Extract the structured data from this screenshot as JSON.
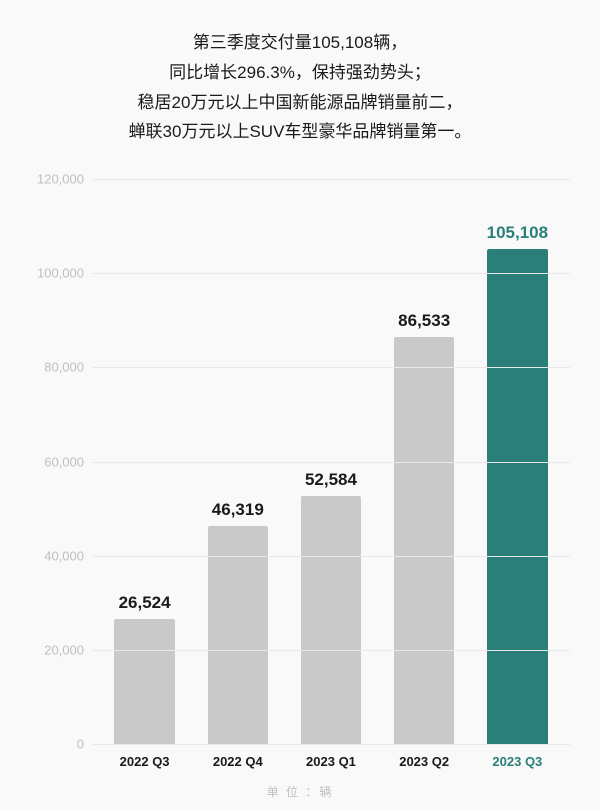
{
  "headline": {
    "lines": [
      "第三季度交付量105,108辆，",
      "同比增长296.3%，保持强劲势头；",
      "稳居20万元以上中国新能源品牌销量前二，",
      "蝉联30万元以上SUV车型豪华品牌销量第一。"
    ],
    "fontsize": 17,
    "color": "#1a1a1a"
  },
  "chart": {
    "type": "bar",
    "background_color": "#f9f9f9",
    "grid_color": "#e9e9e9",
    "ylim": [
      0,
      120000
    ],
    "ytick_step": 20000,
    "yticks": [
      {
        "v": 0,
        "label": "0"
      },
      {
        "v": 20000,
        "label": "20,000"
      },
      {
        "v": 40000,
        "label": "40,000"
      },
      {
        "v": 60000,
        "label": "60,000"
      },
      {
        "v": 80000,
        "label": "80,000"
      },
      {
        "v": 100000,
        "label": "100,000"
      },
      {
        "v": 120000,
        "label": "120,000"
      }
    ],
    "ytick_color": "#bfbfbf",
    "ytick_fontsize": 13,
    "bar_width": 0.72,
    "value_label_fontsize": 17,
    "value_label_weight": 700,
    "x_label_fontsize": 13,
    "x_label_weight": 700,
    "series": [
      {
        "category": "2022 Q3",
        "value": 26524,
        "value_label": "26,524",
        "bar_color": "#c9c9c9",
        "value_color": "#1a1a1a",
        "x_color": "#1a1a1a"
      },
      {
        "category": "2022 Q4",
        "value": 46319,
        "value_label": "46,319",
        "bar_color": "#c9c9c9",
        "value_color": "#1a1a1a",
        "x_color": "#1a1a1a"
      },
      {
        "category": "2023 Q1",
        "value": 52584,
        "value_label": "52,584",
        "bar_color": "#c9c9c9",
        "value_color": "#1a1a1a",
        "x_color": "#1a1a1a"
      },
      {
        "category": "2023 Q2",
        "value": 86533,
        "value_label": "86,533",
        "bar_color": "#c9c9c9",
        "value_color": "#1a1a1a",
        "x_color": "#1a1a1a"
      },
      {
        "category": "2023 Q3",
        "value": 105108,
        "value_label": "105,108",
        "bar_color": "#2a7f78",
        "value_color": "#2a7f78",
        "x_color": "#2a7f78"
      }
    ]
  },
  "unit_label": "单 位 ：辆",
  "unit_color": "#bfbfbf"
}
